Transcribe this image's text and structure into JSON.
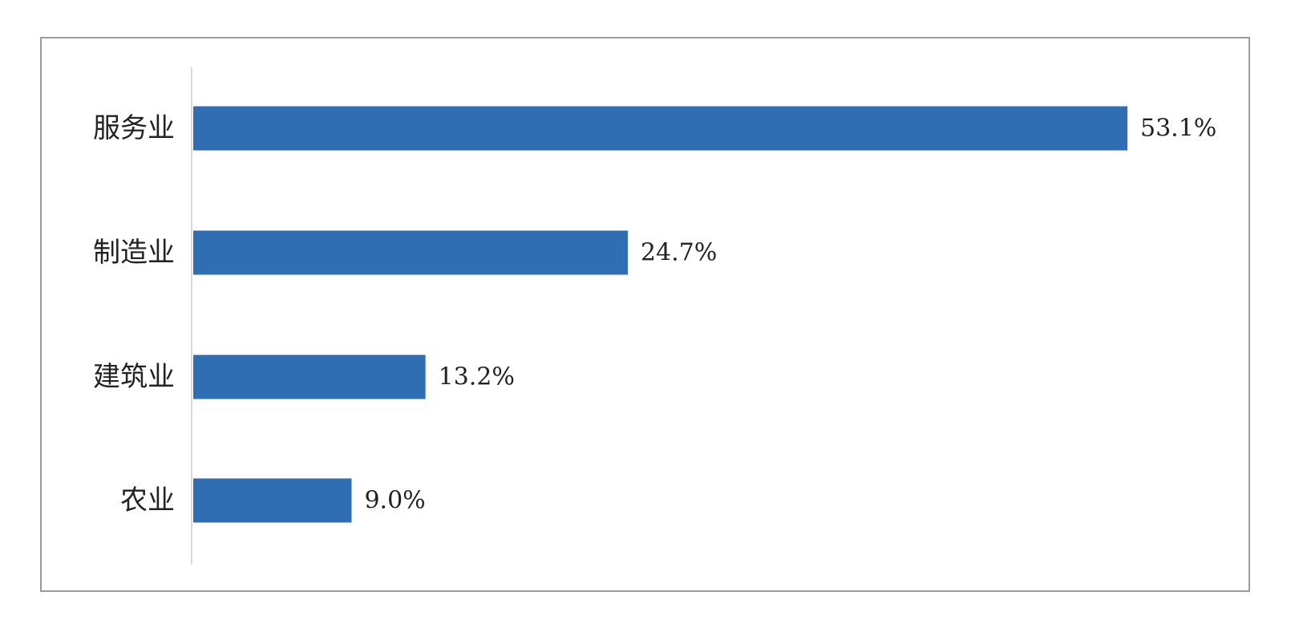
{
  "chart_data": {
    "type": "bar",
    "orientation": "horizontal",
    "categories": [
      "服务业",
      "制造业",
      "建筑业",
      "农业"
    ],
    "values": [
      53.1,
      24.7,
      13.2,
      9.0
    ],
    "data_labels": [
      "53.1%",
      "24.7%",
      "13.2%",
      "9.0%"
    ],
    "unit": "%",
    "xlim": [
      0,
      55
    ],
    "grid": false,
    "legend": "none",
    "colors": {
      "bar": "#2f6eb2",
      "axis": "#d9d9d9",
      "frame": "#9b9b9b",
      "text": "#222222"
    }
  }
}
